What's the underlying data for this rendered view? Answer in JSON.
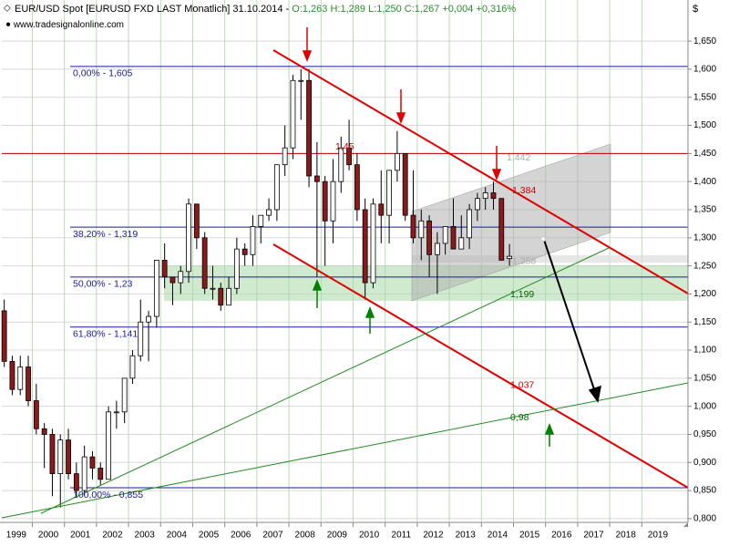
{
  "chart_data": {
    "type": "candlestick",
    "title": "EUR/USD Spot [EURUSD FXD LAST Monatlich] 31.10.2014 -",
    "quote": "O:1,263 H:1,289 L:1,250 C:1,267 +0,004 +0,316%",
    "subtitle": "www.tradesignalonline.com",
    "y_axis_label": "$",
    "xlim": [
      1999.05,
      2020.44
    ],
    "ylim": [
      0.795,
      1.694
    ],
    "grid": true,
    "xticks": [
      1999,
      2000,
      2001,
      2002,
      2003,
      2004,
      2005,
      2006,
      2007,
      2008,
      2009,
      2010,
      2011,
      2012,
      2013,
      2014,
      2015,
      2016,
      2017,
      2018,
      2019
    ],
    "yticks": [
      {
        "value": 0.8,
        "label": "0,800"
      },
      {
        "value": 0.85,
        "label": "0,850"
      },
      {
        "value": 0.9,
        "label": "0,900"
      },
      {
        "value": 0.95,
        "label": "0,950"
      },
      {
        "value": 1.0,
        "label": "1,000"
      },
      {
        "value": 1.05,
        "label": "1,050"
      },
      {
        "value": 1.1,
        "label": "1,100"
      },
      {
        "value": 1.15,
        "label": "1,150"
      },
      {
        "value": 1.2,
        "label": "1,200"
      },
      {
        "value": 1.25,
        "label": "1,250"
      },
      {
        "value": 1.3,
        "label": "1,300"
      },
      {
        "value": 1.35,
        "label": "1,350"
      },
      {
        "value": 1.4,
        "label": "1,400"
      },
      {
        "value": 1.45,
        "label": "1,450"
      },
      {
        "value": 1.5,
        "label": "1,500"
      },
      {
        "value": 1.55,
        "label": "1,550"
      },
      {
        "value": 1.6,
        "label": "1,600"
      },
      {
        "value": 1.65,
        "label": "1,650"
      }
    ],
    "up_color": "#ffffff",
    "down_color": "#8b1a1a",
    "x": [
      1999.125,
      1999.375,
      1999.625,
      1999.875,
      2000.125,
      2000.375,
      2000.625,
      2000.875,
      2001.125,
      2001.375,
      2001.625,
      2001.875,
      2002.125,
      2002.375,
      2002.625,
      2002.875,
      2003.125,
      2003.375,
      2003.625,
      2003.875,
      2004.125,
      2004.375,
      2004.625,
      2004.875,
      2005.125,
      2005.375,
      2005.625,
      2005.875,
      2006.125,
      2006.375,
      2006.625,
      2006.875,
      2007.125,
      2007.375,
      2007.625,
      2007.875,
      2008.125,
      2008.375,
      2008.625,
      2008.875,
      2009.125,
      2009.375,
      2009.625,
      2009.875,
      2010.125,
      2010.375,
      2010.625,
      2010.875,
      2011.125,
      2011.375,
      2011.625,
      2011.875,
      2012.125,
      2012.375,
      2012.625,
      2012.875,
      2013.125,
      2013.375,
      2013.625,
      2013.875,
      2014.125,
      2014.375,
      2014.625,
      2014.875
    ],
    "open": [
      1.17,
      1.08,
      1.03,
      1.07,
      1.01,
      0.96,
      0.95,
      0.88,
      0.94,
      0.88,
      0.85,
      0.91,
      0.89,
      0.87,
      0.99,
      0.99,
      1.05,
      1.09,
      1.15,
      1.16,
      1.26,
      1.23,
      1.22,
      1.24,
      1.36,
      1.3,
      1.21,
      1.21,
      1.18,
      1.21,
      1.28,
      1.27,
      1.32,
      1.34,
      1.35,
      1.43,
      1.46,
      1.58,
      1.58,
      1.41,
      1.4,
      1.33,
      1.4,
      1.46,
      1.43,
      1.35,
      1.22,
      1.36,
      1.34,
      1.42,
      1.45,
      1.34,
      1.3,
      1.33,
      1.27,
      1.29,
      1.32,
      1.28,
      1.3,
      1.35,
      1.37,
      1.38,
      1.37,
      1.263
    ],
    "high": [
      1.19,
      1.09,
      1.09,
      1.09,
      1.04,
      0.97,
      0.96,
      0.95,
      0.96,
      0.9,
      0.93,
      0.92,
      0.9,
      1.0,
      1.01,
      1.05,
      1.1,
      1.19,
      1.17,
      1.26,
      1.29,
      1.23,
      1.25,
      1.37,
      1.36,
      1.31,
      1.25,
      1.22,
      1.23,
      1.3,
      1.29,
      1.34,
      1.34,
      1.37,
      1.43,
      1.5,
      1.59,
      1.6,
      1.6,
      1.47,
      1.41,
      1.44,
      1.48,
      1.51,
      1.45,
      1.37,
      1.37,
      1.42,
      1.42,
      1.49,
      1.45,
      1.42,
      1.35,
      1.34,
      1.31,
      1.32,
      1.37,
      1.34,
      1.36,
      1.38,
      1.39,
      1.4,
      1.37,
      1.289
    ],
    "low": [
      1.07,
      1.02,
      1.02,
      1.0,
      0.95,
      0.89,
      0.84,
      0.82,
      0.87,
      0.84,
      0.84,
      0.87,
      0.86,
      0.87,
      0.96,
      0.97,
      1.04,
      1.08,
      1.08,
      1.14,
      1.21,
      1.18,
      1.2,
      1.22,
      1.28,
      1.2,
      1.19,
      1.17,
      1.18,
      1.2,
      1.25,
      1.25,
      1.29,
      1.33,
      1.33,
      1.41,
      1.44,
      1.51,
      1.39,
      1.23,
      1.25,
      1.29,
      1.38,
      1.42,
      1.33,
      1.19,
      1.21,
      1.29,
      1.29,
      1.4,
      1.33,
      1.29,
      1.26,
      1.23,
      1.2,
      1.27,
      1.28,
      1.28,
      1.28,
      1.33,
      1.35,
      1.35,
      1.26,
      1.25
    ],
    "close": [
      1.08,
      1.03,
      1.07,
      1.01,
      0.96,
      0.95,
      0.88,
      0.94,
      0.88,
      0.85,
      0.91,
      0.89,
      0.87,
      0.99,
      0.99,
      1.05,
      1.09,
      1.15,
      1.16,
      1.26,
      1.23,
      1.22,
      1.24,
      1.36,
      1.3,
      1.21,
      1.21,
      1.18,
      1.21,
      1.28,
      1.27,
      1.32,
      1.34,
      1.35,
      1.43,
      1.46,
      1.58,
      1.58,
      1.41,
      1.4,
      1.33,
      1.4,
      1.46,
      1.43,
      1.35,
      1.22,
      1.36,
      1.34,
      1.42,
      1.45,
      1.34,
      1.3,
      1.33,
      1.27,
      1.29,
      1.32,
      1.28,
      1.3,
      1.35,
      1.37,
      1.38,
      1.37,
      1.26,
      1.267
    ],
    "fib_levels": [
      {
        "value": 1.605,
        "label": "0,00% - 1,605"
      },
      {
        "value": 1.319,
        "label": "38,20% - 1,319"
      },
      {
        "value": 1.23,
        "label": "50,00% - 1,23"
      },
      {
        "value": 1.141,
        "label": "61,80% - 1,141"
      },
      {
        "value": 0.855,
        "label": "100,00% - 0,855"
      }
    ],
    "resistance": {
      "value": 1.45,
      "label": "1,45",
      "color": "#c00000"
    },
    "annotations": [
      {
        "value": 1.442,
        "label": "1,442",
        "color": "#aaaaaa"
      },
      {
        "value": 1.384,
        "label": "1,384",
        "color": "#cc0000"
      },
      {
        "value": 1.258,
        "label": "1,258",
        "color": "#aaaaaa"
      },
      {
        "value": 1.199,
        "label": "1,199",
        "color": "#006600"
      },
      {
        "value": 1.037,
        "label": "1,037",
        "color": "#cc0000"
      },
      {
        "value": 0.98,
        "label": "0,98",
        "color": "#006600"
      }
    ]
  }
}
